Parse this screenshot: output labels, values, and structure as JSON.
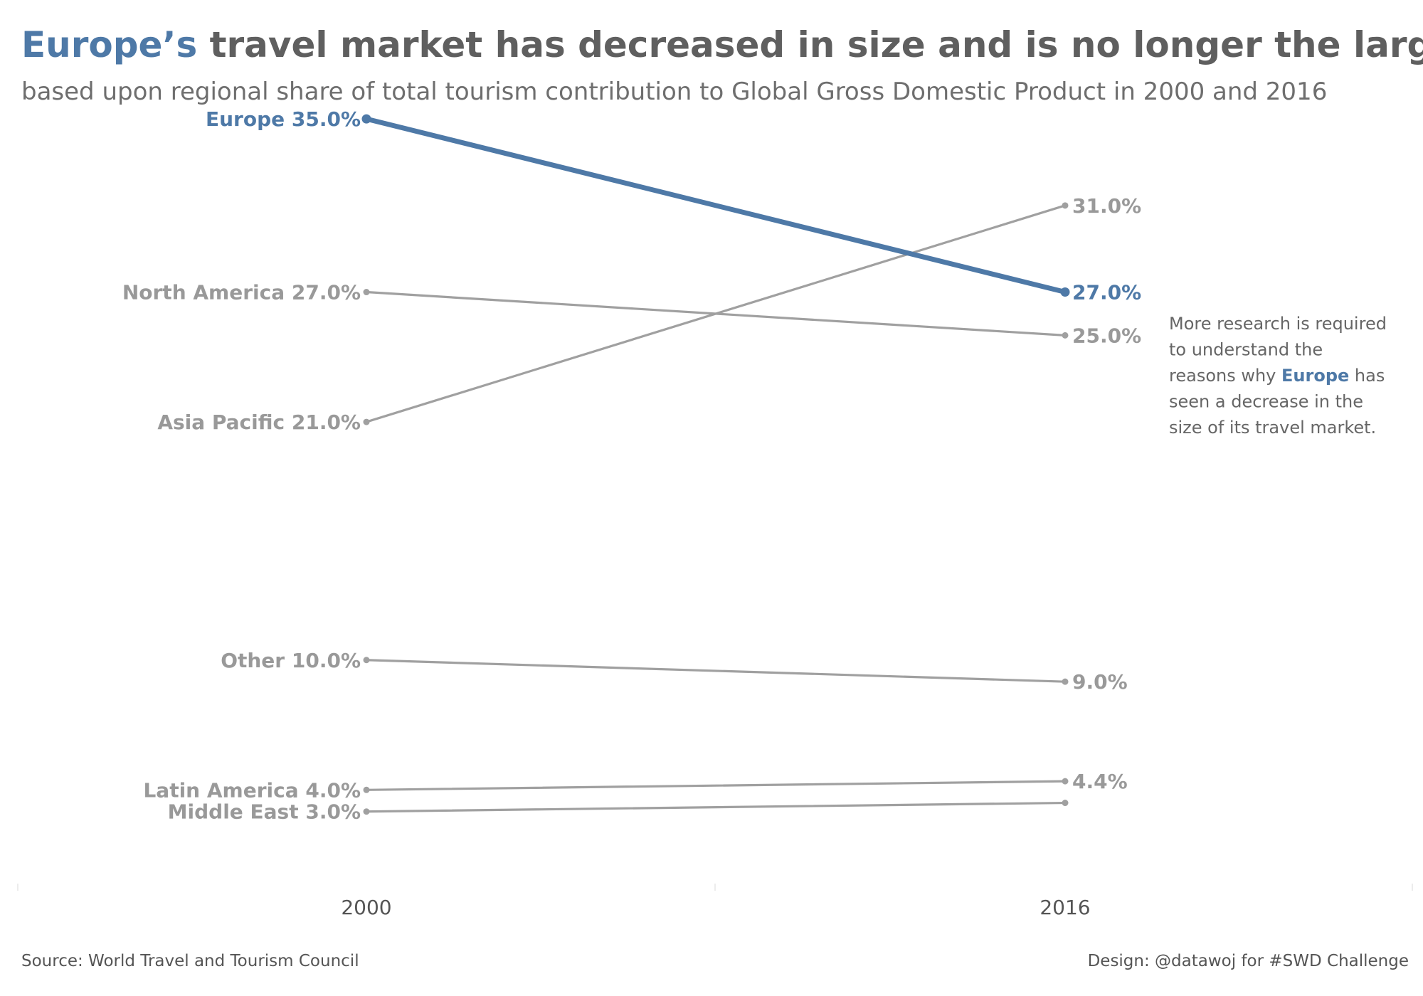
{
  "chart_data": {
    "type": "line",
    "title_highlight": "Europe’s",
    "title_rest": " travel market has decreased in size and is no longer the largest",
    "subtitle": "based upon regional share of total tourism contribution to Global Gross Domestic Product in 2000 and 2016",
    "x": [
      "2000",
      "2016"
    ],
    "ylim": [
      0,
      40
    ],
    "grid": false,
    "highlight_color": "#4e79a7",
    "muted_color": "#a0a0a0",
    "series": [
      {
        "name": "Europe",
        "values": [
          35.0,
          27.0
        ],
        "start_label": "Europe 35.0%",
        "end_label": "27.0%",
        "highlight": true
      },
      {
        "name": "North America",
        "values": [
          27.0,
          25.0
        ],
        "start_label": "North America 27.0%",
        "end_label": "25.0%",
        "highlight": false
      },
      {
        "name": "Asia Pacific",
        "values": [
          21.0,
          31.0
        ],
        "start_label": "Asia Pacific 21.0%",
        "end_label": "31.0%",
        "highlight": false
      },
      {
        "name": "Other",
        "values": [
          10.0,
          9.0
        ],
        "start_label": "Other 10.0%",
        "end_label": "9.0%",
        "highlight": false
      },
      {
        "name": "Latin America",
        "values": [
          4.0,
          4.4
        ],
        "start_label": "Latin America 4.0%",
        "end_label": "4.4%",
        "highlight": false
      },
      {
        "name": "Middle East",
        "values": [
          3.0,
          3.4
        ],
        "start_label": "Middle East 3.0%",
        "end_label": "",
        "highlight": false
      }
    ],
    "note_lines": [
      [
        "More research is required"
      ],
      [
        "to understand the"
      ],
      [
        "reasons why ",
        "Europe",
        " has"
      ],
      [
        "seen a decrease in the"
      ],
      [
        "size of its travel market."
      ]
    ],
    "source": "Source: World Travel and Tourism Council",
    "credit": "Design: @datawoj for #SWD Challenge"
  }
}
